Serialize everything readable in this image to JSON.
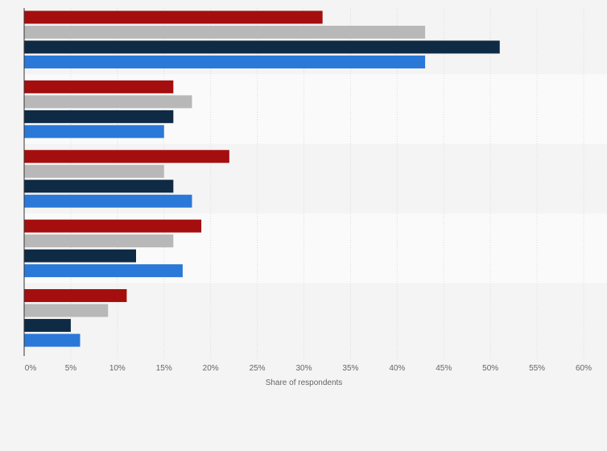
{
  "chart_data": {
    "type": "bar",
    "orientation": "horizontal",
    "xlabel": "Share of respondents",
    "ylabel": "",
    "xlim": [
      0,
      60
    ],
    "x_ticks": [
      "0%",
      "5%",
      "10%",
      "15%",
      "20%",
      "25%",
      "30%",
      "35%",
      "40%",
      "45%",
      "50%",
      "55%",
      "60%"
    ],
    "grid": true,
    "legend": "none",
    "categories": [
      "",
      "",
      "",
      "",
      ""
    ],
    "series": [
      {
        "color": "#a50e0e",
        "values": [
          32,
          16,
          22,
          19,
          11
        ]
      },
      {
        "color": "#b8b8b8",
        "values": [
          43,
          18,
          15,
          16,
          9
        ]
      },
      {
        "color": "#0f2a44",
        "values": [
          51,
          16,
          16,
          12,
          5
        ]
      },
      {
        "color": "#2a78d8",
        "values": [
          43,
          15,
          18,
          17,
          6
        ]
      }
    ]
  }
}
